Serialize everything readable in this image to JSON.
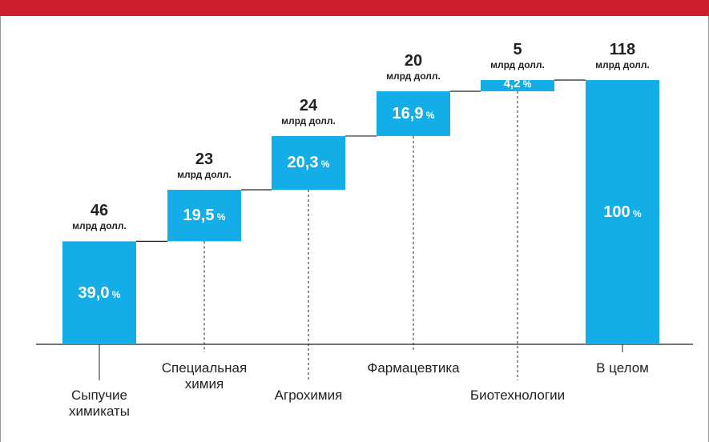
{
  "chart_data": {
    "type": "waterfall",
    "categories": [
      "Сыпучие химикаты",
      "Специальная химия",
      "Агрохимия",
      "Фармацевтика",
      "Биотехнологии",
      "В целом"
    ],
    "values": [
      46,
      23,
      24,
      20,
      5,
      118
    ],
    "unit": "млрд долл.",
    "shares": [
      39.0,
      19.5,
      20.3,
      16.9,
      4.2,
      100
    ],
    "share_labels": [
      "39,0",
      "19,5",
      "20,3",
      "16,9",
      "4,2",
      "100"
    ],
    "share_unit": "%",
    "color": "#13aee8",
    "header_color": "#cc1f2b"
  }
}
